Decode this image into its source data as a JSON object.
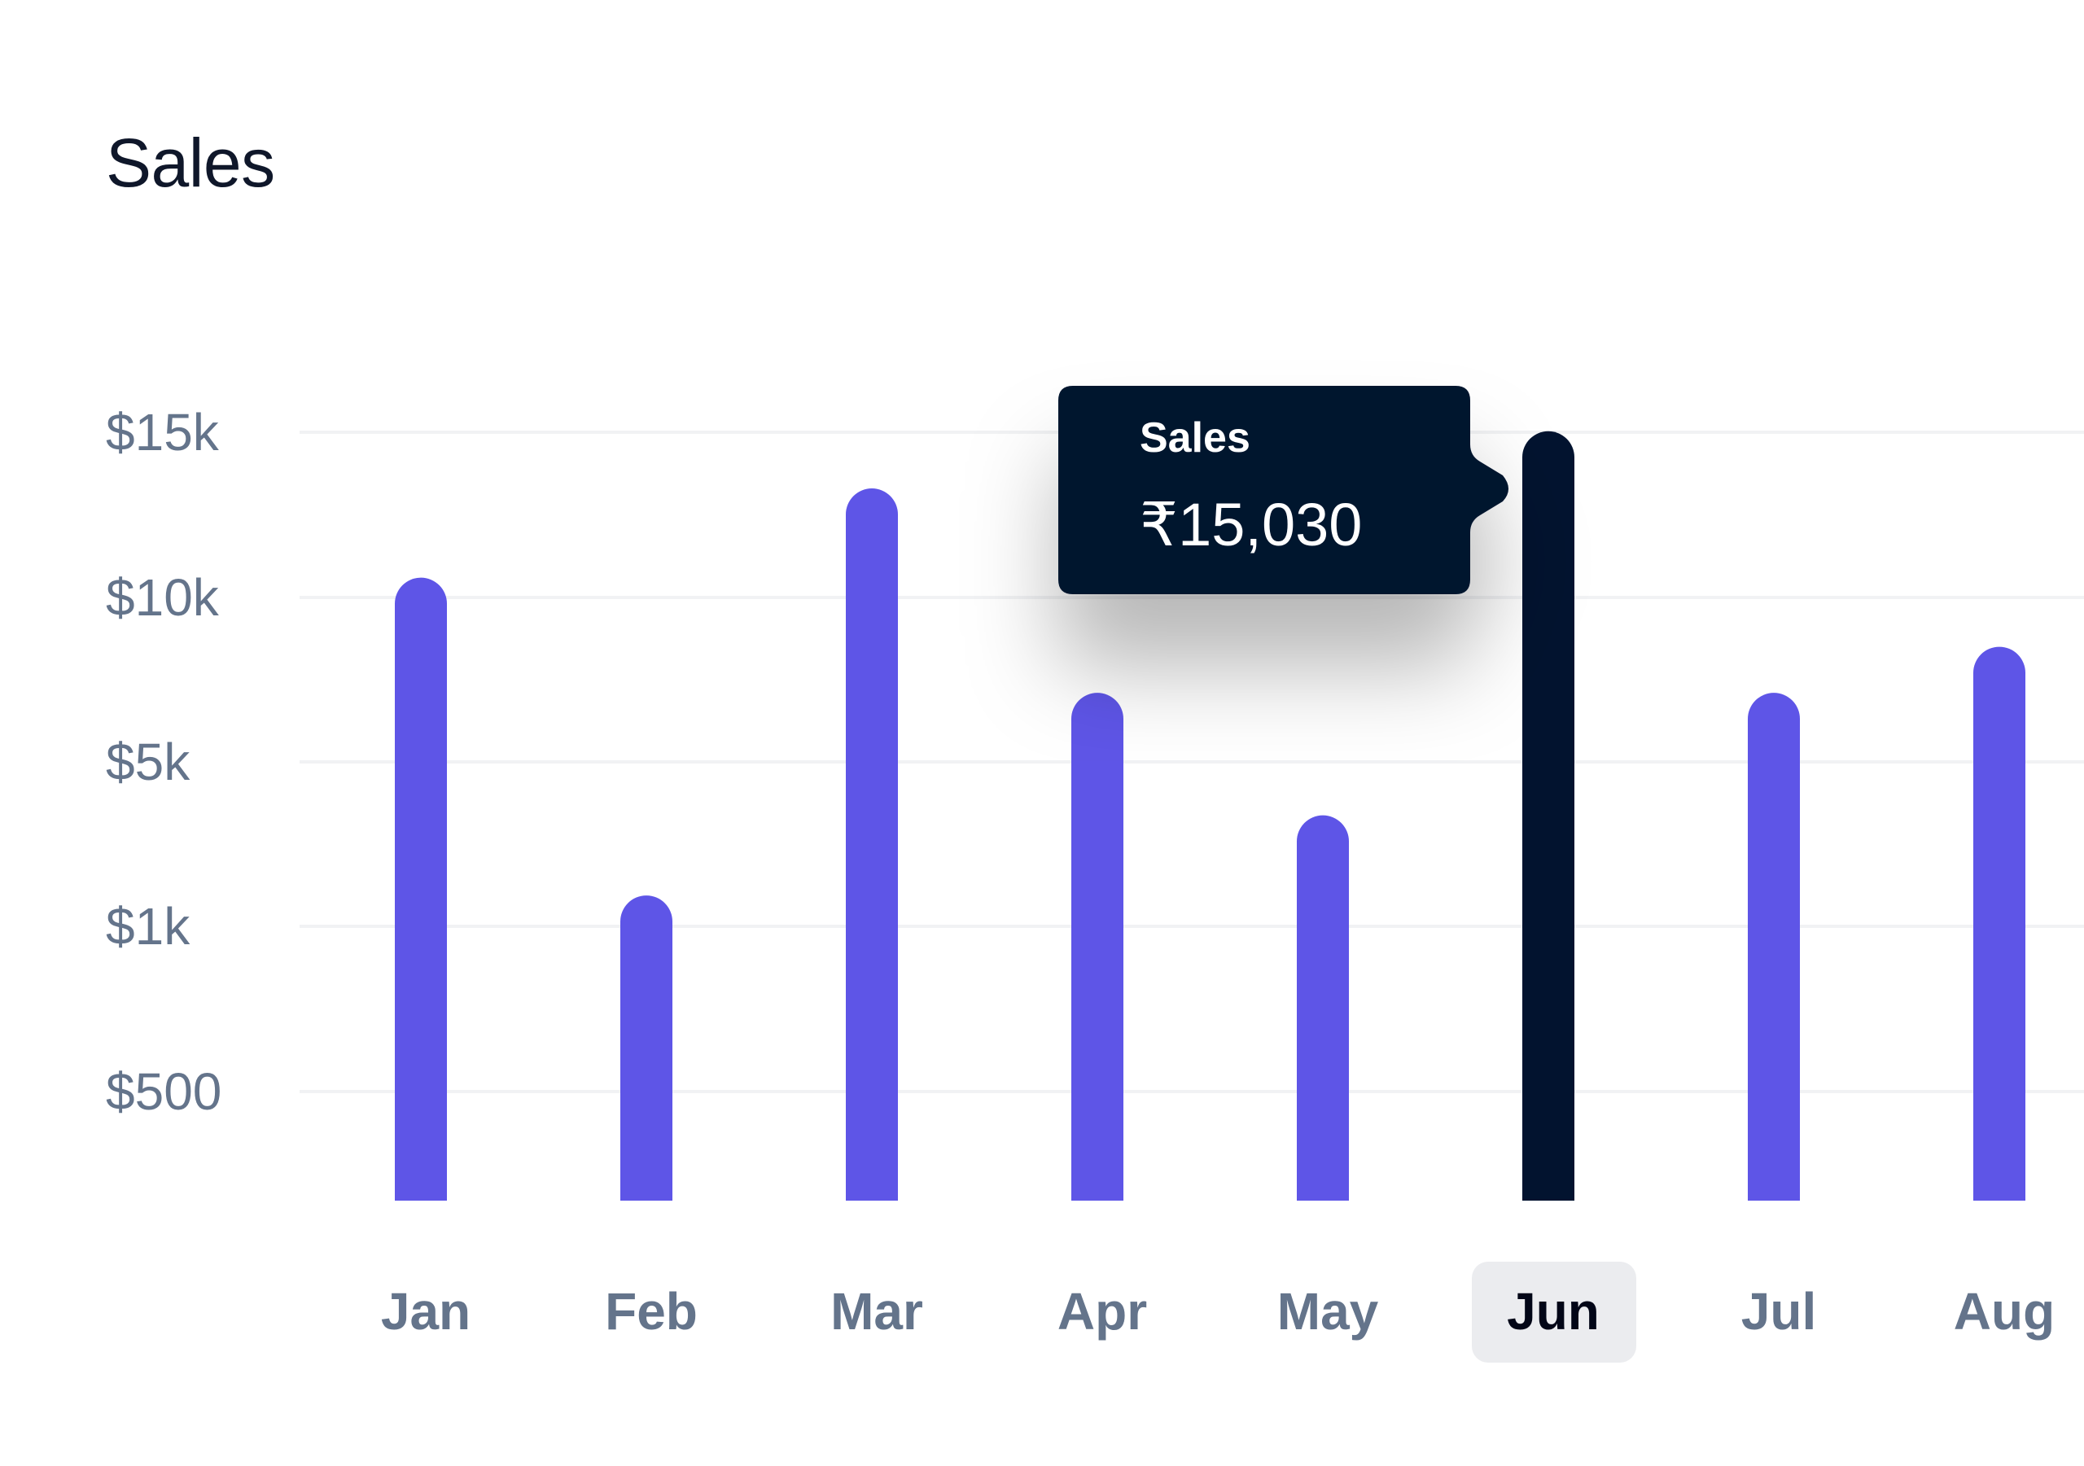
{
  "card": {
    "title": "Sales"
  },
  "colors": {
    "bar": "#5e55e7",
    "bar_active": "#02132f",
    "grid": "#f1f2f4",
    "tooltip_bg": "#02132f",
    "x_active_bg": "#ebecef"
  },
  "tooltip": {
    "label": "Sales",
    "value": "₹15,030"
  },
  "chart_data": {
    "type": "bar",
    "title": "Sales",
    "categories": [
      "Jan",
      "Feb",
      "Mar",
      "Apr",
      "May",
      "Jun",
      "Jul",
      "Aug"
    ],
    "values": [
      10600,
      1750,
      13300,
      7100,
      3700,
      15030,
      7100,
      8500
    ],
    "y_ticks": [
      {
        "label": "$15k",
        "value": 15000
      },
      {
        "label": "$10k",
        "value": 10000
      },
      {
        "label": "$5k",
        "value": 5000
      },
      {
        "label": "$1k",
        "value": 1000
      },
      {
        "label": "$500",
        "value": 500
      }
    ],
    "active_index": 5,
    "grid": true
  }
}
